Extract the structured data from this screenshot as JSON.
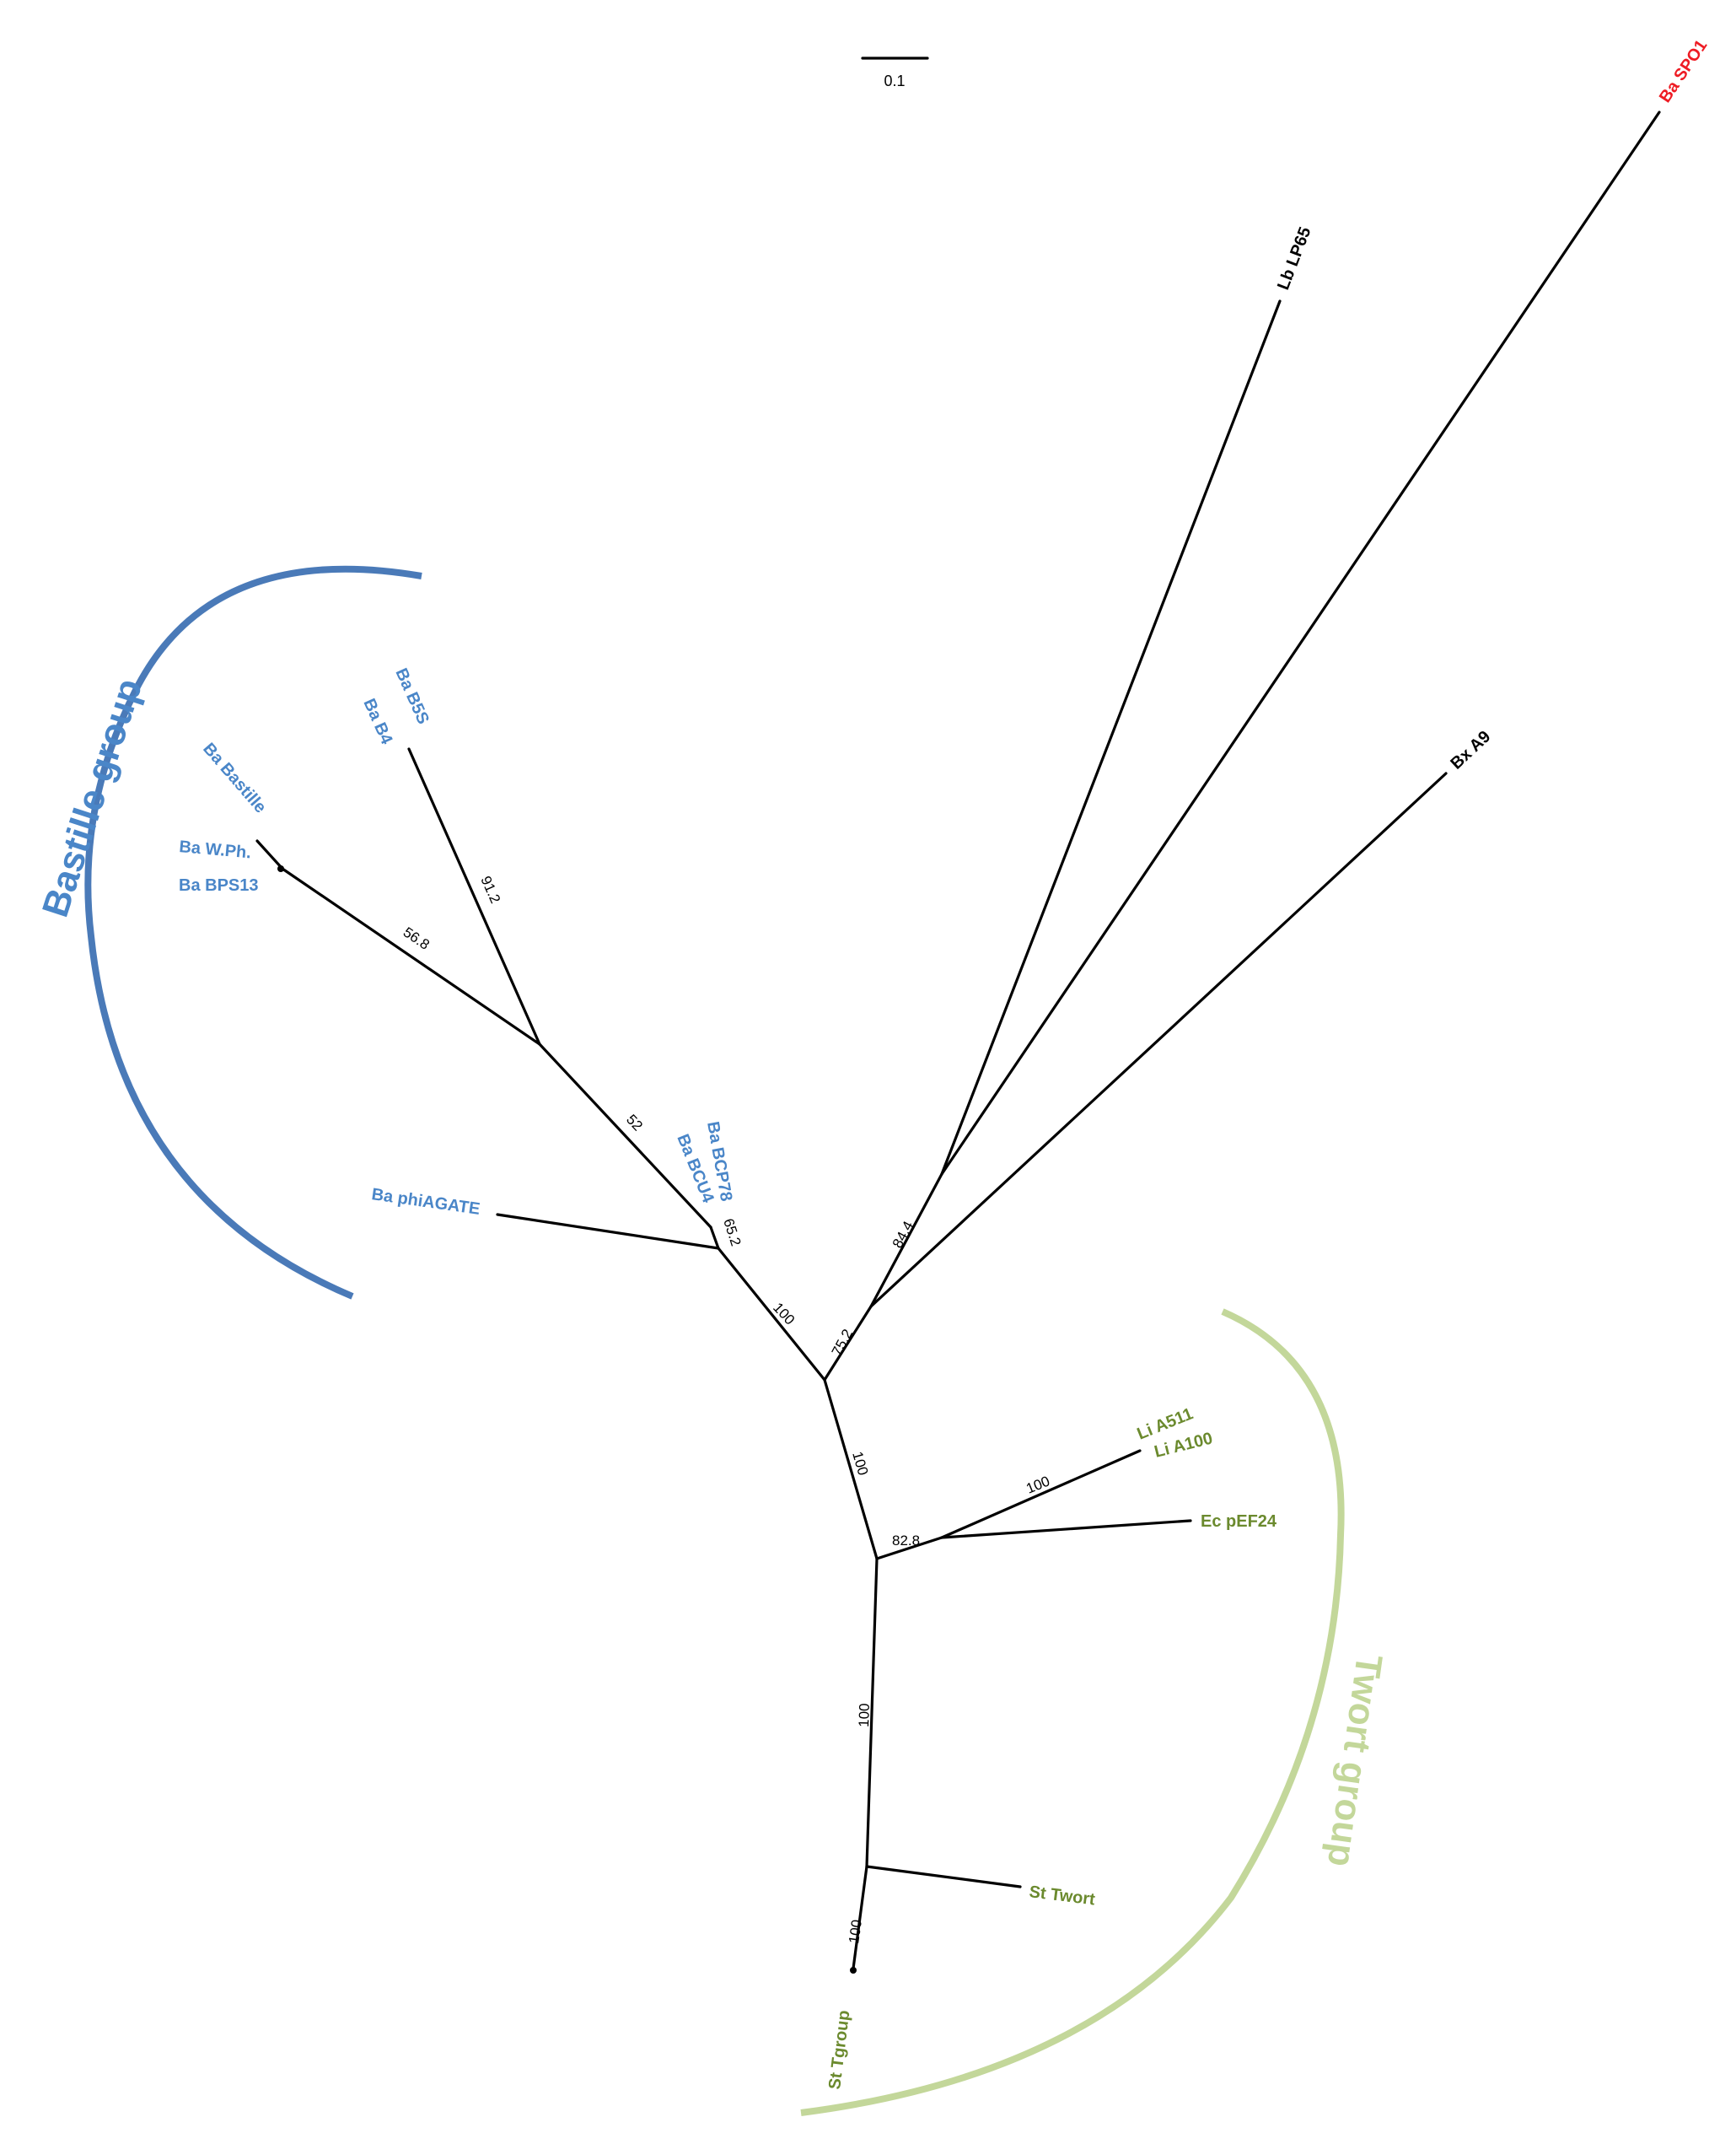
{
  "colors": {
    "bastille": "#4a86c8",
    "bastille_arc": "#4a7ab8",
    "twort": "#6b8a2e",
    "twort_arc": "#c3d79a",
    "spo1": "#ee1c24",
    "neutral": "#000000"
  },
  "scale_bar": {
    "label": "0.1"
  },
  "groups": {
    "bastille": "Bastille group",
    "twort": "Twort group"
  },
  "taxa": {
    "ba_spo1": "Ba SPO1",
    "lb_lp65": "Lb LP65",
    "bx_a9": "Bx A9",
    "ba_b5s": "Ba B5S",
    "ba_b4": "Ba B4",
    "ba_bastille": "Ba Bastille",
    "ba_wph": "Ba W.Ph.",
    "ba_bps13": "Ba BPS13",
    "ba_bcp78": "Ba BCP78",
    "ba_bcu4": "Ba BCU4",
    "ba_phiagate": "Ba phiAGATE",
    "li_a511": "Li A511",
    "li_a100": "Li A100",
    "ec_pef24": "Ec pEF24",
    "st_twort": "St Twort",
    "st_tgroup": "St Tgroup"
  },
  "bootstrap": {
    "b_912": "91.2",
    "b_568": "56.8",
    "b_52": "52",
    "b_652": "65.2",
    "b_100_bastille": "100",
    "b_752": "75.2",
    "b_844": "84.4",
    "b_100_root": "100",
    "b_828": "82.8",
    "b_100_listeria": "100",
    "b_100_twort": "100",
    "b_100_tgroup": "100"
  }
}
